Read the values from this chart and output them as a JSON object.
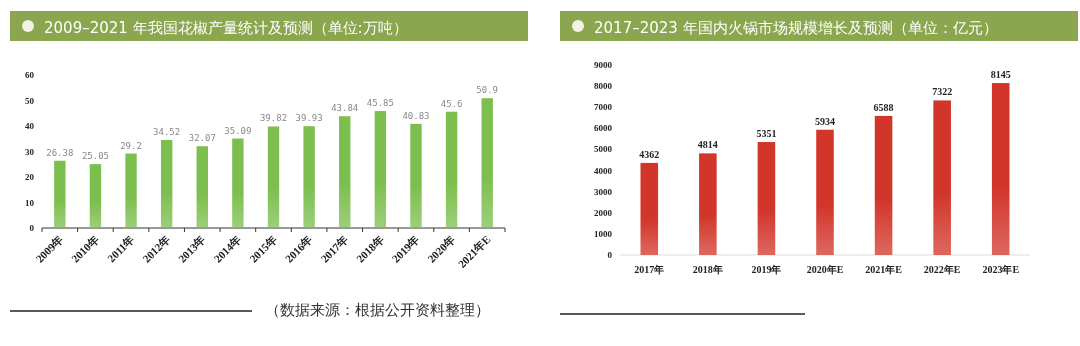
{
  "chart_data": [
    {
      "type": "bar",
      "title": "2009–2021 年我国花椒产量统计及预测（单位:万吨）",
      "categories": [
        "2009年",
        "2010年",
        "2011年",
        "2012年",
        "2013年",
        "2014年",
        "2015年",
        "2016年",
        "2017年",
        "2018年",
        "2019年",
        "2020年",
        "2021年E"
      ],
      "values": [
        26.38,
        25.05,
        29.2,
        34.52,
        32.07,
        35.09,
        39.82,
        39.93,
        43.84,
        45.85,
        40.83,
        45.6,
        50.9
      ],
      "color": "#7cbf4e",
      "ylim": [
        0,
        60
      ],
      "yticks": [
        0,
        10,
        20,
        30,
        40,
        50,
        60
      ],
      "data_labels": true,
      "annotations": [
        "（数据来源：根据公开资料整理）"
      ]
    },
    {
      "type": "bar",
      "title": "2017–2023 年国内火锅市场规模增长及预测（单位：亿元）",
      "categories": [
        "2017年",
        "2018年",
        "2019年",
        "2020年E",
        "2021年E",
        "2022年E",
        "2023年E"
      ],
      "values": [
        4362,
        4814,
        5351,
        5934,
        6588,
        7322,
        8145
      ],
      "color": "#d2352a",
      "ylim": [
        0,
        9000
      ],
      "yticks": [
        0,
        1000,
        2000,
        3000,
        4000,
        5000,
        6000,
        7000,
        8000,
        9000
      ],
      "data_labels": true
    }
  ]
}
